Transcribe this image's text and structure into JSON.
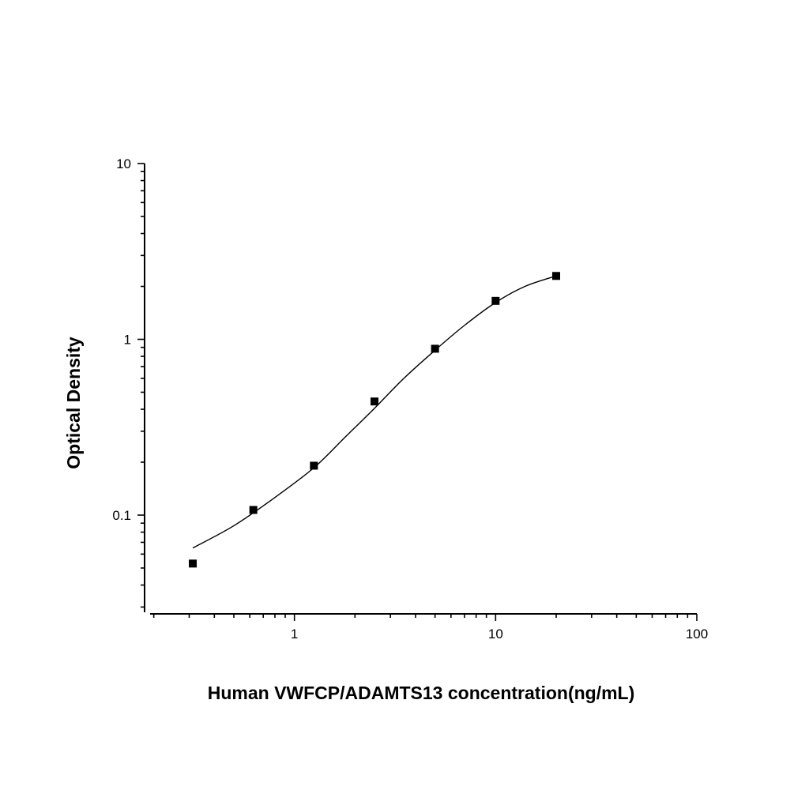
{
  "chart_data": {
    "type": "scatter",
    "xlabel": "Human VWFCP/ADAMTS13 concentration(ng/mL)",
    "ylabel": "Optical Density",
    "x_scale": "log",
    "y_scale": "log",
    "xlim": [
      0.18,
      100
    ],
    "ylim": [
      0.028,
      10
    ],
    "x_ticks": [
      {
        "value": 1,
        "label": "1"
      },
      {
        "value": 10,
        "label": "10"
      },
      {
        "value": 100,
        "label": "100"
      }
    ],
    "y_ticks": [
      {
        "value": 0.1,
        "label": "0.1"
      },
      {
        "value": 1,
        "label": "1"
      },
      {
        "value": 10,
        "label": "10"
      }
    ],
    "grid": false,
    "legend": "none",
    "series": [
      {
        "marker": "square",
        "color": "#000000",
        "x": [
          0.3125,
          0.625,
          1.25,
          2.5,
          5,
          10,
          20
        ],
        "y": [
          0.053,
          0.107,
          0.191,
          0.443,
          0.884,
          1.655,
          2.294
        ]
      }
    ],
    "fit_curve": {
      "color": "#000000",
      "x": [
        0.3125,
        0.5,
        0.8,
        1.25,
        1.8,
        2.5,
        3.5,
        5,
        7,
        10,
        14,
        20
      ],
      "y": [
        0.065,
        0.087,
        0.126,
        0.186,
        0.28,
        0.405,
        0.6,
        0.867,
        1.2,
        1.62,
        2.0,
        2.294
      ]
    }
  }
}
